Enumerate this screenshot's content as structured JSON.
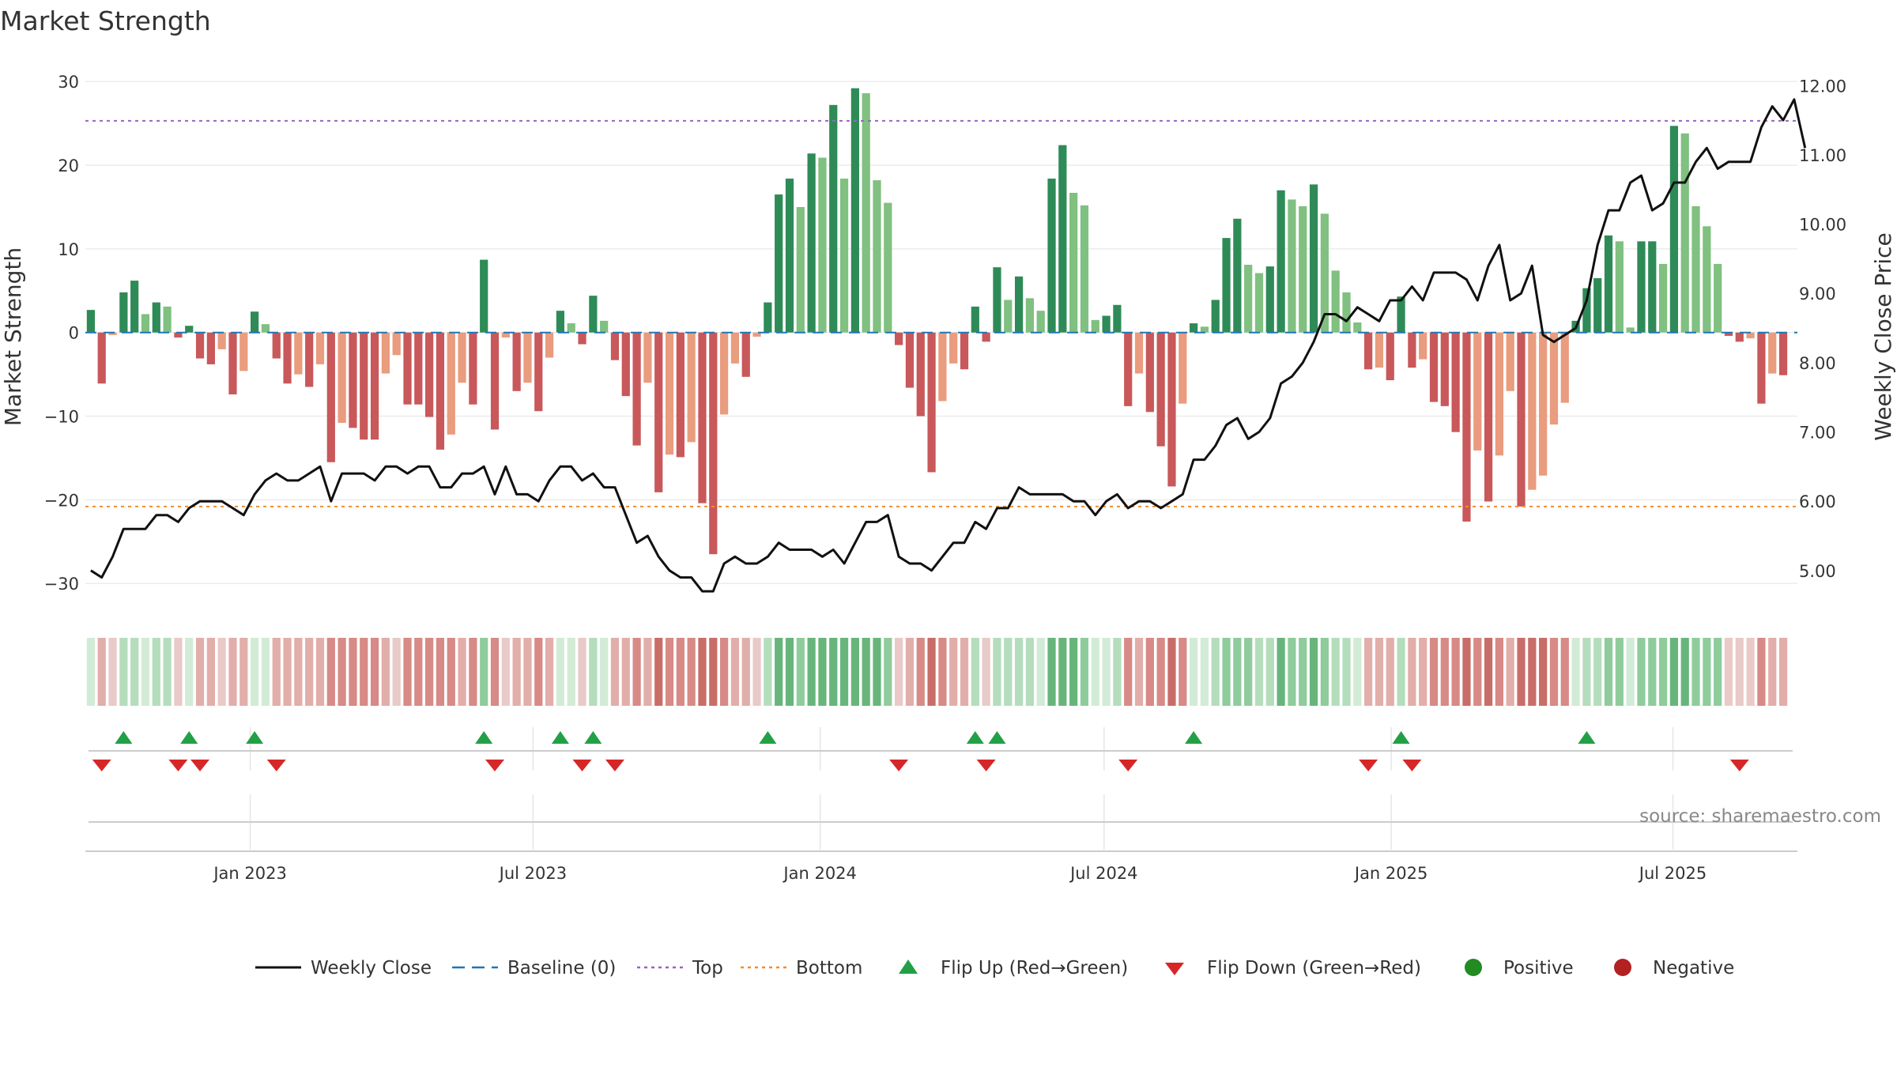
{
  "chart_data": {
    "type": "bar",
    "title": "Market Strength",
    "ylabel_left": "Market Strength",
    "ylabel_right": "Weekly Close Price",
    "source": "source: sharemaestro.com",
    "grid": true,
    "legend_placement": "bottom",
    "ylim_left": [
      -33,
      32
    ],
    "yticks_left": [
      30,
      20,
      10,
      0,
      -10,
      -20,
      -30
    ],
    "yticks_left_labels": [
      "30",
      "20",
      "10",
      "0",
      "−10",
      "−20",
      "−30"
    ],
    "ylim_right": [
      4.45,
      12.3
    ],
    "yticks_right": [
      12,
      11,
      10,
      9,
      8,
      7,
      6,
      5
    ],
    "yticks_right_labels": [
      "12.00",
      "11.00",
      "10.00",
      "9.00",
      "8.00",
      "7.00",
      "6.00",
      "5.00"
    ],
    "xlim_weeks": [
      0,
      156.8
    ],
    "xticks": [
      {
        "label": "Jan 2023",
        "week": 15.1
      },
      {
        "label": "Jul 2023",
        "week": 41
      },
      {
        "label": "Jan 2024",
        "week": 67.3
      },
      {
        "label": "Jul 2024",
        "week": 93.3
      },
      {
        "label": "Jan 2025",
        "week": 119.6
      },
      {
        "label": "Jul 2025",
        "week": 145.4
      }
    ],
    "thresholds": {
      "top": 25.3,
      "bottom": -20.8,
      "baseline": 0
    },
    "market_strength": [
      2.7,
      -6.1,
      -0.3,
      4.8,
      6.2,
      2.2,
      3.6,
      3.1,
      -0.6,
      0.8,
      -3.1,
      -3.8,
      -2.0,
      -7.4,
      -4.6,
      2.5,
      1.0,
      -3.1,
      -6.1,
      -5.0,
      -6.5,
      -3.8,
      -15.5,
      -10.8,
      -11.4,
      -12.8,
      -12.8,
      -4.9,
      -2.7,
      -8.6,
      -8.6,
      -10.1,
      -14.0,
      -12.2,
      -6.0,
      -8.6,
      8.7,
      -11.6,
      -0.6,
      -7.0,
      -6.0,
      -9.4,
      -3.0,
      2.6,
      1.1,
      -1.4,
      4.4,
      1.4,
      -3.3,
      -7.6,
      -13.5,
      -6.0,
      -19.1,
      -14.6,
      -14.9,
      -13.1,
      -20.4,
      -26.5,
      -9.8,
      -3.7,
      -5.3,
      -0.5,
      3.6,
      16.5,
      18.4,
      15.0,
      21.4,
      20.9,
      27.2,
      18.4,
      29.2,
      28.6,
      18.2,
      15.5,
      -1.5,
      -6.6,
      -10.0,
      -16.7,
      -8.2,
      -3.7,
      -4.4,
      3.1,
      -1.1,
      7.8,
      3.9,
      6.7,
      4.1,
      2.6,
      18.4,
      22.4,
      16.7,
      15.2,
      1.5,
      2.0,
      3.3,
      -8.8,
      -4.9,
      -9.5,
      -13.6,
      -18.4,
      -8.5,
      1.1,
      0.7,
      3.9,
      11.3,
      13.6,
      8.1,
      7.1,
      7.9,
      17.0,
      15.9,
      15.1,
      17.7,
      14.2,
      7.4,
      4.8,
      1.2,
      -4.4,
      -4.2,
      -5.7,
      4.3,
      -4.2,
      -3.2,
      -8.3,
      -8.8,
      -11.9,
      -22.6,
      -14.1,
      -20.2,
      -14.7,
      -7.0,
      -20.8,
      -18.8,
      -17.1,
      -11.0,
      -8.4,
      1.4,
      5.3,
      6.5,
      11.6,
      10.9,
      0.6,
      10.9,
      10.9,
      8.2,
      24.7,
      23.8,
      15.1,
      12.7,
      8.2,
      -0.4,
      -1.1,
      -0.7,
      -8.5,
      -4.9,
      -5.1
    ],
    "weekly_close": [
      5.0,
      4.9,
      5.2,
      5.6,
      5.6,
      5.6,
      5.8,
      5.8,
      5.7,
      5.9,
      6.0,
      6.0,
      6.0,
      5.9,
      5.8,
      6.1,
      6.3,
      6.4,
      6.3,
      6.3,
      6.4,
      6.5,
      6.0,
      6.4,
      6.4,
      6.4,
      6.3,
      6.5,
      6.5,
      6.4,
      6.5,
      6.5,
      6.2,
      6.2,
      6.4,
      6.4,
      6.5,
      6.1,
      6.5,
      6.1,
      6.1,
      6.0,
      6.3,
      6.5,
      6.5,
      6.3,
      6.4,
      6.2,
      6.2,
      5.8,
      5.4,
      5.5,
      5.2,
      5.0,
      4.9,
      4.9,
      4.7,
      4.7,
      5.1,
      5.2,
      5.1,
      5.1,
      5.2,
      5.4,
      5.3,
      5.3,
      5.3,
      5.2,
      5.3,
      5.1,
      5.4,
      5.7,
      5.7,
      5.8,
      5.2,
      5.1,
      5.1,
      5.0,
      5.2,
      5.4,
      5.4,
      5.7,
      5.6,
      5.9,
      5.9,
      6.2,
      6.1,
      6.1,
      6.1,
      6.1,
      6.0,
      6.0,
      5.8,
      6.0,
      6.1,
      5.9,
      6.0,
      6.0,
      5.9,
      6.0,
      6.1,
      6.6,
      6.6,
      6.8,
      7.1,
      7.2,
      6.9,
      7.0,
      7.2,
      7.7,
      7.8,
      8.0,
      8.3,
      8.7,
      8.7,
      8.6,
      8.8,
      8.7,
      8.6,
      8.9,
      8.9,
      9.1,
      8.9,
      9.3,
      9.3,
      9.3,
      9.2,
      8.9,
      9.4,
      9.7,
      8.9,
      9.0,
      9.4,
      8.4,
      8.3,
      8.4,
      8.5,
      8.9,
      9.7,
      10.2,
      10.2,
      10.6,
      10.7,
      10.2,
      10.3,
      10.6,
      10.6,
      10.9,
      11.1,
      10.8,
      10.9,
      10.9,
      10.9,
      11.4,
      11.7,
      11.5,
      11.8,
      11.1
    ],
    "color_strip_palette": {
      "red": [
        "#e9cac8",
        "#e2aeaa",
        "#d78a86",
        "#c96d69"
      ],
      "green": [
        "#d2ebd6",
        "#b4ddbc",
        "#8fcc9c",
        "#68b57c"
      ],
      "neutral": "#e6e6e6"
    },
    "flip_up_weeks": [
      3,
      9,
      15,
      36,
      43,
      46,
      62,
      81,
      83,
      101,
      120,
      137
    ],
    "flip_down_weeks": [
      1,
      8,
      10,
      17,
      37,
      45,
      48,
      74,
      82,
      95,
      117,
      121,
      151
    ],
    "legend": [
      {
        "label": "Weekly Close",
        "symbol": "line",
        "color": "#111111"
      },
      {
        "label": "Baseline (0)",
        "symbol": "dash",
        "color": "#1f77b4"
      },
      {
        "label": "Top",
        "symbol": "dot",
        "color": "#9467bd"
      },
      {
        "label": "Bottom",
        "symbol": "dot",
        "color": "#f28e2b"
      },
      {
        "label": "Flip Up (Red→Green)",
        "symbol": "triangle-up",
        "color": "#22a046"
      },
      {
        "label": "Flip Down (Green→Red)",
        "symbol": "triangle-down",
        "color": "#d62728"
      },
      {
        "label": "Positive",
        "symbol": "circle",
        "color": "#228b22"
      },
      {
        "label": "Negative",
        "symbol": "circle",
        "color": "#b22222"
      }
    ]
  }
}
